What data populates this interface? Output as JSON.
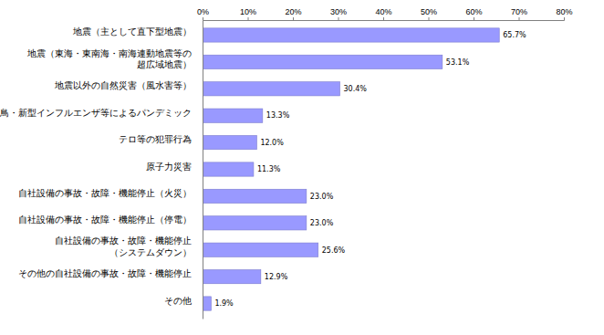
{
  "chart_data": {
    "type": "bar",
    "orientation": "horizontal",
    "categories": [
      "地震（主として直下型地震）",
      "地震（東海・東南海・南海連動地震等の\n超広域地震）",
      "地震以外の自然災害（風水害等）",
      "鳥・新型インフルエンザ等によるパンデミック",
      "テロ等の犯罪行為",
      "原子力災害",
      "自社設備の事故・故障・機能停止（火災）",
      "自社設備の事故・故障・機能停止（停電）",
      "自社設備の事故・故障・機能停止\n（システムダウン）",
      "その他の自社設備の事故・故障・機能停止",
      "その他"
    ],
    "values": [
      65.7,
      53.1,
      30.4,
      13.3,
      12.0,
      11.3,
      23.0,
      23.0,
      25.6,
      12.9,
      1.9
    ],
    "value_labels": [
      "65.7%",
      "53.1%",
      "30.4%",
      "13.3%",
      "12.0%",
      "11.3%",
      "23.0%",
      "23.0%",
      "25.6%",
      "12.9%",
      "1.9%"
    ],
    "data_labels": true,
    "color": "#9999ff",
    "xlim": [
      0,
      80
    ],
    "xticks": [
      {
        "value": 0,
        "label": "0%"
      },
      {
        "value": 10,
        "label": "10%"
      },
      {
        "value": 20,
        "label": "20%"
      },
      {
        "value": 30,
        "label": "30%"
      },
      {
        "value": 40,
        "label": "40%"
      },
      {
        "value": 50,
        "label": "50%"
      },
      {
        "value": 60,
        "label": "60%"
      },
      {
        "value": 70,
        "label": "70%"
      },
      {
        "value": 80,
        "label": "80%"
      }
    ],
    "grid": false
  }
}
